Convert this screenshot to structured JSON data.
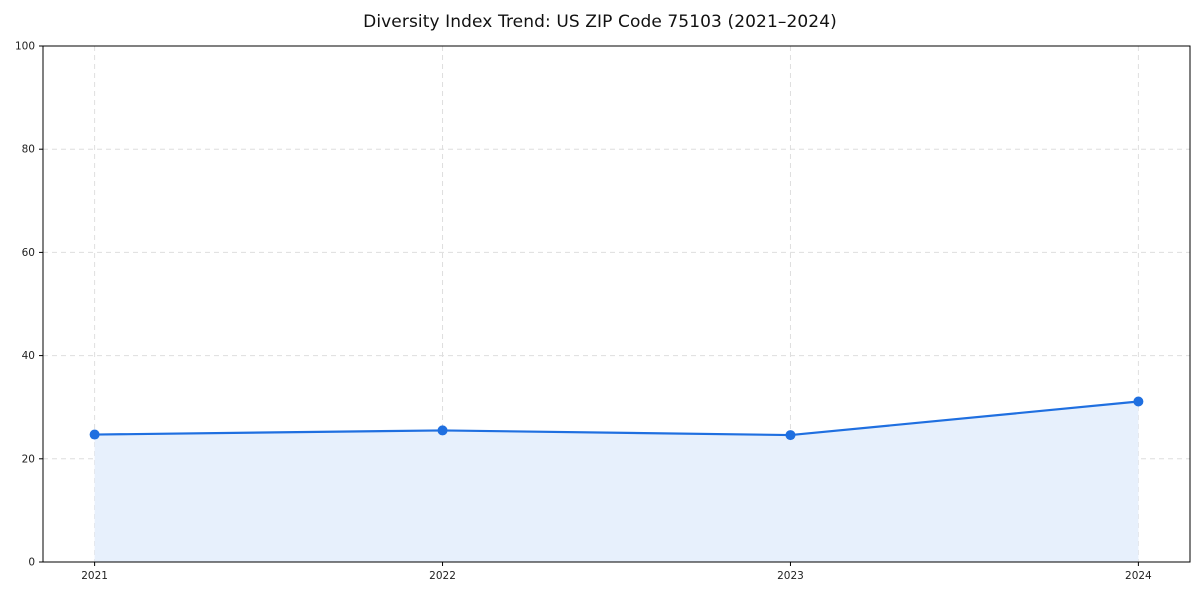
{
  "chart_data": {
    "type": "area",
    "title": "Diversity Index Trend: US ZIP Code 75103 (2021–2024)",
    "x": [
      2021,
      2022,
      2023,
      2024
    ],
    "series": [
      {
        "name": "Diversity Index",
        "values": [
          24.7,
          25.5,
          24.6,
          31.1
        ]
      }
    ],
    "xlabel": "",
    "ylabel": "",
    "ylim": [
      0,
      100
    ],
    "yticks": [
      0,
      20,
      40,
      60,
      80,
      100
    ],
    "grid": true,
    "grid_style": "dashed",
    "legend": "none",
    "colors": {
      "line": "#1f6fe0",
      "marker": "#1f6fe0",
      "fill": "#e7f0fc",
      "grid": "#dedede",
      "axis": "#000000",
      "tick_text": "#222222"
    }
  }
}
